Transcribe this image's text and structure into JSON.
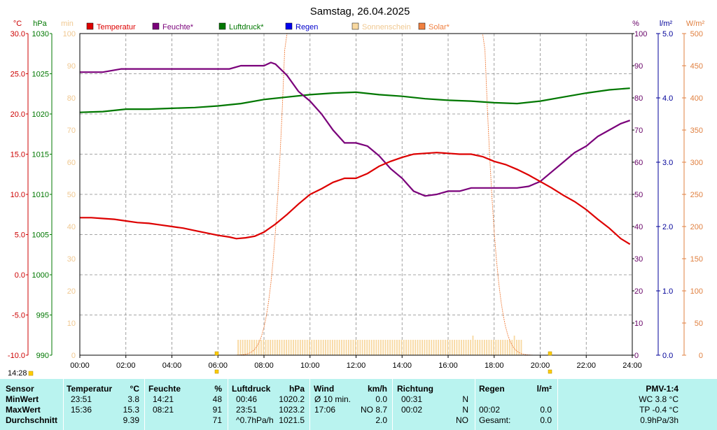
{
  "chart_data": {
    "type": "line",
    "title": "Samstag, 26.04.2025",
    "x_ticks": [
      "00:00",
      "02:00",
      "04:00",
      "06:00",
      "08:00",
      "10:00",
      "12:00",
      "14:00",
      "16:00",
      "18:00",
      "20:00",
      "22:00",
      "24:00"
    ],
    "axes": {
      "temp": {
        "unit": "°C",
        "ticks": [
          "30.0",
          "25.0",
          "20.0",
          "15.0",
          "10.0",
          "5.0",
          "0.0",
          "-5.0",
          "-10.0"
        ],
        "color": "#cc0000"
      },
      "pressure": {
        "unit": "hPa",
        "ticks": [
          "1030",
          "1025",
          "1020",
          "1015",
          "1010",
          "1005",
          "1000",
          "995",
          "990"
        ],
        "color": "#007700"
      },
      "sunshine": {
        "unit": "min",
        "ticks": [
          "100",
          "90",
          "80",
          "70",
          "60",
          "50",
          "40",
          "30",
          "20",
          "10",
          "0"
        ],
        "color": "#f0c890"
      },
      "humidity": {
        "unit": "%",
        "ticks": [
          "100",
          "90",
          "80",
          "70",
          "60",
          "50",
          "40",
          "30",
          "20",
          "10",
          "0"
        ],
        "color": "#660066"
      },
      "rain": {
        "unit": "l/m²",
        "ticks": [
          "5.0",
          "4.0",
          "3.0",
          "2.0",
          "1.0",
          "0.0"
        ],
        "color": "#000099"
      },
      "solar": {
        "unit": "W/m²",
        "ticks": [
          "500",
          "450",
          "400",
          "350",
          "300",
          "250",
          "200",
          "150",
          "100",
          "50",
          "0"
        ],
        "color": "#e08040"
      }
    },
    "legend": [
      {
        "label": "Temperatur",
        "color": "#dd0000"
      },
      {
        "label": "Feuchte*",
        "color": "#7a007a"
      },
      {
        "label": "Luftdruck*",
        "color": "#007700"
      },
      {
        "label": "Regen",
        "color": "#0000ee"
      },
      {
        "label": "Sonnenschein",
        "color": "#f8d8a0"
      },
      {
        "label": "Solar*",
        "color": "#f08040"
      }
    ],
    "marker_time": "14:28",
    "series": {
      "temperature": [
        [
          0,
          7.1
        ],
        [
          0.5,
          7.1
        ],
        [
          1,
          7.0
        ],
        [
          1.5,
          6.9
        ],
        [
          2,
          6.7
        ],
        [
          2.5,
          6.5
        ],
        [
          3,
          6.4
        ],
        [
          3.5,
          6.2
        ],
        [
          4,
          6.0
        ],
        [
          4.5,
          5.8
        ],
        [
          5,
          5.5
        ],
        [
          5.5,
          5.2
        ],
        [
          6,
          4.9
        ],
        [
          6.5,
          4.7
        ],
        [
          6.8,
          4.5
        ],
        [
          7.2,
          4.6
        ],
        [
          7.6,
          4.8
        ],
        [
          8,
          5.3
        ],
        [
          8.5,
          6.3
        ],
        [
          9,
          7.5
        ],
        [
          9.5,
          8.8
        ],
        [
          10,
          10.0
        ],
        [
          10.5,
          10.7
        ],
        [
          11,
          11.5
        ],
        [
          11.5,
          12.0
        ],
        [
          12,
          12.0
        ],
        [
          12.5,
          12.6
        ],
        [
          13,
          13.5
        ],
        [
          13.5,
          14.1
        ],
        [
          14,
          14.6
        ],
        [
          14.5,
          15.0
        ],
        [
          15,
          15.1
        ],
        [
          15.5,
          15.2
        ],
        [
          16,
          15.1
        ],
        [
          16.5,
          15.0
        ],
        [
          17,
          15.0
        ],
        [
          17.5,
          14.7
        ],
        [
          18,
          14.1
        ],
        [
          18.5,
          13.7
        ],
        [
          19,
          13.1
        ],
        [
          19.5,
          12.4
        ],
        [
          20,
          11.6
        ],
        [
          20.5,
          10.8
        ],
        [
          21,
          9.9
        ],
        [
          21.5,
          9.1
        ],
        [
          22,
          8.1
        ],
        [
          22.5,
          6.9
        ],
        [
          23,
          5.8
        ],
        [
          23.5,
          4.5
        ],
        [
          23.9,
          3.8
        ]
      ],
      "humidity": [
        [
          0,
          88
        ],
        [
          0.7,
          88
        ],
        [
          1,
          88
        ],
        [
          1.8,
          89
        ],
        [
          2,
          89
        ],
        [
          3,
          89
        ],
        [
          4,
          89
        ],
        [
          5,
          89
        ],
        [
          5.8,
          89
        ],
        [
          6.5,
          89
        ],
        [
          7,
          90
        ],
        [
          7.5,
          90
        ],
        [
          8,
          90
        ],
        [
          8.3,
          91
        ],
        [
          8.5,
          90.5
        ],
        [
          9,
          87
        ],
        [
          9.5,
          82
        ],
        [
          10,
          79
        ],
        [
          10.5,
          75
        ],
        [
          11,
          70
        ],
        [
          11.5,
          66
        ],
        [
          12,
          66
        ],
        [
          12.5,
          65
        ],
        [
          13,
          62
        ],
        [
          13.5,
          58
        ],
        [
          14,
          55
        ],
        [
          14.5,
          51
        ],
        [
          15,
          49.5
        ],
        [
          15.5,
          50
        ],
        [
          16,
          51
        ],
        [
          16.5,
          51
        ],
        [
          17,
          52
        ],
        [
          17.5,
          52
        ],
        [
          18,
          52
        ],
        [
          18.5,
          52
        ],
        [
          19,
          52
        ],
        [
          19.5,
          52.5
        ],
        [
          20,
          54
        ],
        [
          20.5,
          57
        ],
        [
          21,
          60
        ],
        [
          21.5,
          63
        ],
        [
          22,
          65
        ],
        [
          22.5,
          68
        ],
        [
          23,
          70
        ],
        [
          23.5,
          72
        ],
        [
          23.9,
          73
        ]
      ],
      "pressure": [
        [
          0,
          1020.2
        ],
        [
          1,
          1020.3
        ],
        [
          2,
          1020.6
        ],
        [
          3,
          1020.6
        ],
        [
          4,
          1020.7
        ],
        [
          5,
          1020.8
        ],
        [
          6,
          1021.0
        ],
        [
          7,
          1021.3
        ],
        [
          8,
          1021.8
        ],
        [
          9,
          1022.1
        ],
        [
          10,
          1022.4
        ],
        [
          11,
          1022.6
        ],
        [
          12,
          1022.7
        ],
        [
          13,
          1022.4
        ],
        [
          14,
          1022.2
        ],
        [
          15,
          1021.9
        ],
        [
          16,
          1021.7
        ],
        [
          17,
          1021.6
        ],
        [
          18,
          1021.4
        ],
        [
          19,
          1021.3
        ],
        [
          20,
          1021.6
        ],
        [
          21,
          1022.1
        ],
        [
          22,
          1022.6
        ],
        [
          23,
          1023.0
        ],
        [
          23.9,
          1023.2
        ]
      ]
    }
  },
  "stats": {
    "headers": {
      "sensor": "Sensor",
      "temp": "Temperatur",
      "temp_unit": "°C",
      "hum": "Feuchte",
      "hum_unit": "%",
      "press": "Luftdruck",
      "press_unit": "hPa",
      "wind": "Wind",
      "wind_unit": "km/h",
      "dir": "Richtung",
      "rain": "Regen",
      "rain_unit": "l/m²",
      "pmv": "PMV-1:4"
    },
    "rows": [
      {
        "label": "MinWert",
        "temp_time": "23:51",
        "temp_val": "3.8",
        "hum_time": "14:21",
        "hum_val": "48",
        "press_time": "00:46",
        "press_val": "1020.2",
        "wind_label": "Ø 10 min.",
        "wind_val": "0.0",
        "dir_time": "00:31",
        "dir_val": "N",
        "rain_time": "",
        "rain_val": "",
        "pmv": "WC 3.8 °C"
      },
      {
        "label": "MaxWert",
        "temp_time": "15:36",
        "temp_val": "15.3",
        "hum_time": "08:21",
        "hum_val": "91",
        "press_time": "23:51",
        "press_val": "1023.2",
        "wind_label": "17:06",
        "wind_val": "NO 8.7",
        "dir_time": "00:02",
        "dir_val": "N",
        "rain_time": "00:02",
        "rain_val": "0.0",
        "pmv": "TP -0.4 °C"
      },
      {
        "label": "Durchschnitt",
        "temp_time": "",
        "temp_val": "9.39",
        "hum_time": "",
        "hum_val": "71",
        "press_time": "^0.7hPa/h",
        "press_val": "1021.5",
        "wind_label": "",
        "wind_val": "2.0",
        "dir_time": "",
        "dir_val": "NO",
        "rain_time": "Gesamt:",
        "rain_val": "0.0",
        "pmv": "0.9hPa/3h"
      }
    ]
  }
}
